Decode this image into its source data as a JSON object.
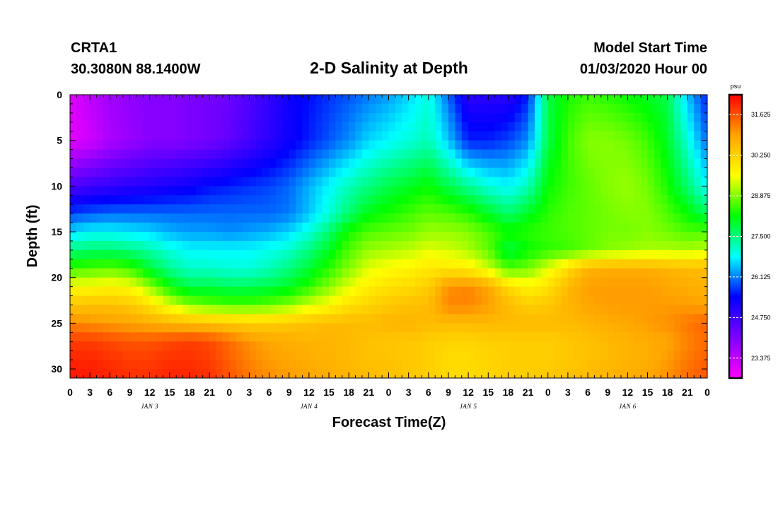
{
  "header": {
    "station_id": "CRTA1",
    "station_coords": "30.3080N 88.1400W",
    "title": "2-D Salinity at Depth",
    "start_label": "Model Start Time",
    "start_value": "01/03/2020 Hour 00"
  },
  "chart_data": {
    "type": "heatmap",
    "title": "2-D Salinity at Depth",
    "xlabel": "Forecast Time(Z)",
    "ylabel": "Depth (ft)",
    "x_range_hours": [
      0,
      96
    ],
    "x_tick_labels": [
      "0",
      "3",
      "6",
      "9",
      "12",
      "15",
      "18",
      "21",
      "0",
      "3",
      "6",
      "9",
      "12",
      "15",
      "18",
      "21",
      "0",
      "3",
      "6",
      "9",
      "12",
      "15",
      "18",
      "21",
      "0",
      "3",
      "6",
      "9",
      "12",
      "15",
      "18",
      "21",
      "0"
    ],
    "day_labels": [
      {
        "text": "JAN 3",
        "hour": 12
      },
      {
        "text": "JAN 4",
        "hour": 36
      },
      {
        "text": "JAN 5",
        "hour": 60
      },
      {
        "text": "JAN 6",
        "hour": 84
      }
    ],
    "y_range_ft": [
      0,
      31
    ],
    "y_ticks": [
      0,
      5,
      10,
      15,
      20,
      25,
      30
    ],
    "y_inverted": true,
    "colorbar": {
      "unit": "psu",
      "range": [
        22.7,
        32.3
      ],
      "tick_values": [
        23.375,
        24.75,
        26.125,
        27.5,
        28.875,
        30.25,
        31.625
      ],
      "tick_labels": [
        "23.375",
        "24.750",
        "26.125",
        "27.500",
        "28.875",
        "30.250",
        "31.625"
      ],
      "colors": [
        "#ff00ff",
        "#8000ff",
        "#0000ff",
        "#00ffff",
        "#00ff00",
        "#ffff00",
        "#ffa500",
        "#ff0000"
      ]
    },
    "grid_time_hours": [
      0,
      3,
      6,
      9,
      12,
      15,
      18,
      21,
      24,
      27,
      30,
      33,
      36,
      39,
      42,
      45,
      48,
      51,
      54,
      57,
      60,
      63,
      66,
      69,
      72,
      75,
      78,
      81,
      84,
      87,
      90,
      93,
      96
    ],
    "grid_depth_ft": [
      0,
      5,
      10,
      13,
      15,
      17,
      19,
      21,
      23,
      25,
      27,
      29,
      31
    ],
    "salinity_psu": [
      [
        23.0,
        23.4,
        23.7,
        23.9,
        24.0,
        24.0,
        24.1,
        24.2,
        24.3,
        24.6,
        24.9,
        25.3,
        25.5,
        25.7,
        25.9,
        26.1,
        26.3,
        26.6,
        27.0,
        26.0,
        25.0,
        25.0,
        25.0,
        25.6,
        27.8,
        28.3,
        28.5,
        28.4,
        28.2,
        28.0,
        27.8,
        26.5,
        25.6
      ],
      [
        23.0,
        23.2,
        23.6,
        23.8,
        24.0,
        24.0,
        24.1,
        24.2,
        24.4,
        24.7,
        25.0,
        25.3,
        25.6,
        25.9,
        26.2,
        26.6,
        26.8,
        27.0,
        27.2,
        26.5,
        25.6,
        25.6,
        25.8,
        26.2,
        27.8,
        28.5,
        28.9,
        28.9,
        28.8,
        28.5,
        28.0,
        27.0,
        26.0
      ],
      [
        24.6,
        24.8,
        24.9,
        25.0,
        25.1,
        25.2,
        25.3,
        25.5,
        25.6,
        25.7,
        25.8,
        26.0,
        26.4,
        26.8,
        27.2,
        27.5,
        27.8,
        28.0,
        28.2,
        27.8,
        27.4,
        27.0,
        26.8,
        27.2,
        28.2,
        28.5,
        28.7,
        28.9,
        29.0,
        28.8,
        28.3,
        27.6,
        26.8
      ],
      [
        25.8,
        25.9,
        26.0,
        26.0,
        26.0,
        26.0,
        26.0,
        26.0,
        26.0,
        26.0,
        26.0,
        26.1,
        26.5,
        27.0,
        27.6,
        28.1,
        28.3,
        28.5,
        28.7,
        28.6,
        28.4,
        28.0,
        27.6,
        28.0,
        28.4,
        28.6,
        28.7,
        28.8,
        28.9,
        28.9,
        28.6,
        28.2,
        27.7
      ],
      [
        26.6,
        26.8,
        26.8,
        26.7,
        26.6,
        26.4,
        26.3,
        26.3,
        26.2,
        26.3,
        26.4,
        26.6,
        27.0,
        27.6,
        28.3,
        28.6,
        28.7,
        28.8,
        29.0,
        29.0,
        28.9,
        28.6,
        28.3,
        28.4,
        28.5,
        28.6,
        28.7,
        28.8,
        28.8,
        28.9,
        28.8,
        28.6,
        28.6
      ],
      [
        27.5,
        27.6,
        27.6,
        27.5,
        27.3,
        27.0,
        26.8,
        26.8,
        26.8,
        26.8,
        26.9,
        27.1,
        27.5,
        28.0,
        28.6,
        29.0,
        29.1,
        29.2,
        29.4,
        29.3,
        29.1,
        28.7,
        27.8,
        28.2,
        28.4,
        28.5,
        28.7,
        28.9,
        29.0,
        29.1,
        29.1,
        29.1,
        29.2
      ],
      [
        28.5,
        28.6,
        28.7,
        28.5,
        27.9,
        27.4,
        27.1,
        27.1,
        27.0,
        27.0,
        27.2,
        27.5,
        27.9,
        28.4,
        28.9,
        29.4,
        29.6,
        29.7,
        29.9,
        29.9,
        29.8,
        29.3,
        28.6,
        28.8,
        29.4,
        30.1,
        30.7,
        30.8,
        30.8,
        30.8,
        30.7,
        30.6,
        30.6
      ],
      [
        29.6,
        29.6,
        29.7,
        29.6,
        29.0,
        28.2,
        27.8,
        27.8,
        27.7,
        27.7,
        27.8,
        28.0,
        28.4,
        28.9,
        29.4,
        29.8,
        30.0,
        30.1,
        30.3,
        31.1,
        31.2,
        30.9,
        30.1,
        29.7,
        30.0,
        30.6,
        31.0,
        31.0,
        31.0,
        31.0,
        30.9,
        30.8,
        30.7
      ],
      [
        30.4,
        30.5,
        30.5,
        30.4,
        30.0,
        29.4,
        28.9,
        28.7,
        28.6,
        28.6,
        28.7,
        28.9,
        29.3,
        29.6,
        30.0,
        30.2,
        30.4,
        30.5,
        30.6,
        31.2,
        31.2,
        31.0,
        30.6,
        30.3,
        30.4,
        30.7,
        30.9,
        31.0,
        31.0,
        31.0,
        31.0,
        31.0,
        30.9
      ],
      [
        31.2,
        31.1,
        31.0,
        30.9,
        30.8,
        30.7,
        30.6,
        30.5,
        30.4,
        30.3,
        30.3,
        30.4,
        30.5,
        30.6,
        30.6,
        30.6,
        30.7,
        30.7,
        30.6,
        30.6,
        30.6,
        30.6,
        30.6,
        30.6,
        30.6,
        30.6,
        30.7,
        30.8,
        30.9,
        31.0,
        31.1,
        31.3,
        31.5
      ],
      [
        31.8,
        31.8,
        31.7,
        31.6,
        31.6,
        31.7,
        31.8,
        31.7,
        31.4,
        31.1,
        30.9,
        30.8,
        30.7,
        30.7,
        30.6,
        30.5,
        30.4,
        30.4,
        30.3,
        30.2,
        30.2,
        30.3,
        30.3,
        30.3,
        30.3,
        30.4,
        30.5,
        30.6,
        30.7,
        30.8,
        30.9,
        31.2,
        31.4
      ],
      [
        32.0,
        32.0,
        31.9,
        31.8,
        31.8,
        31.9,
        31.9,
        31.8,
        31.5,
        31.2,
        31.0,
        30.9,
        30.8,
        30.7,
        30.6,
        30.5,
        30.5,
        30.4,
        30.3,
        30.1,
        30.1,
        30.2,
        30.3,
        30.3,
        30.3,
        30.4,
        30.5,
        30.6,
        30.7,
        30.8,
        31.0,
        31.3,
        31.5
      ],
      [
        32.1,
        32.1,
        32.0,
        31.9,
        31.9,
        32.0,
        32.0,
        31.9,
        31.6,
        31.3,
        31.1,
        31.0,
        30.9,
        30.8,
        30.7,
        30.6,
        30.5,
        30.4,
        30.3,
        30.1,
        30.1,
        30.2,
        30.3,
        30.3,
        30.4,
        30.5,
        30.6,
        30.7,
        30.8,
        30.9,
        31.1,
        31.4,
        31.6
      ]
    ]
  }
}
